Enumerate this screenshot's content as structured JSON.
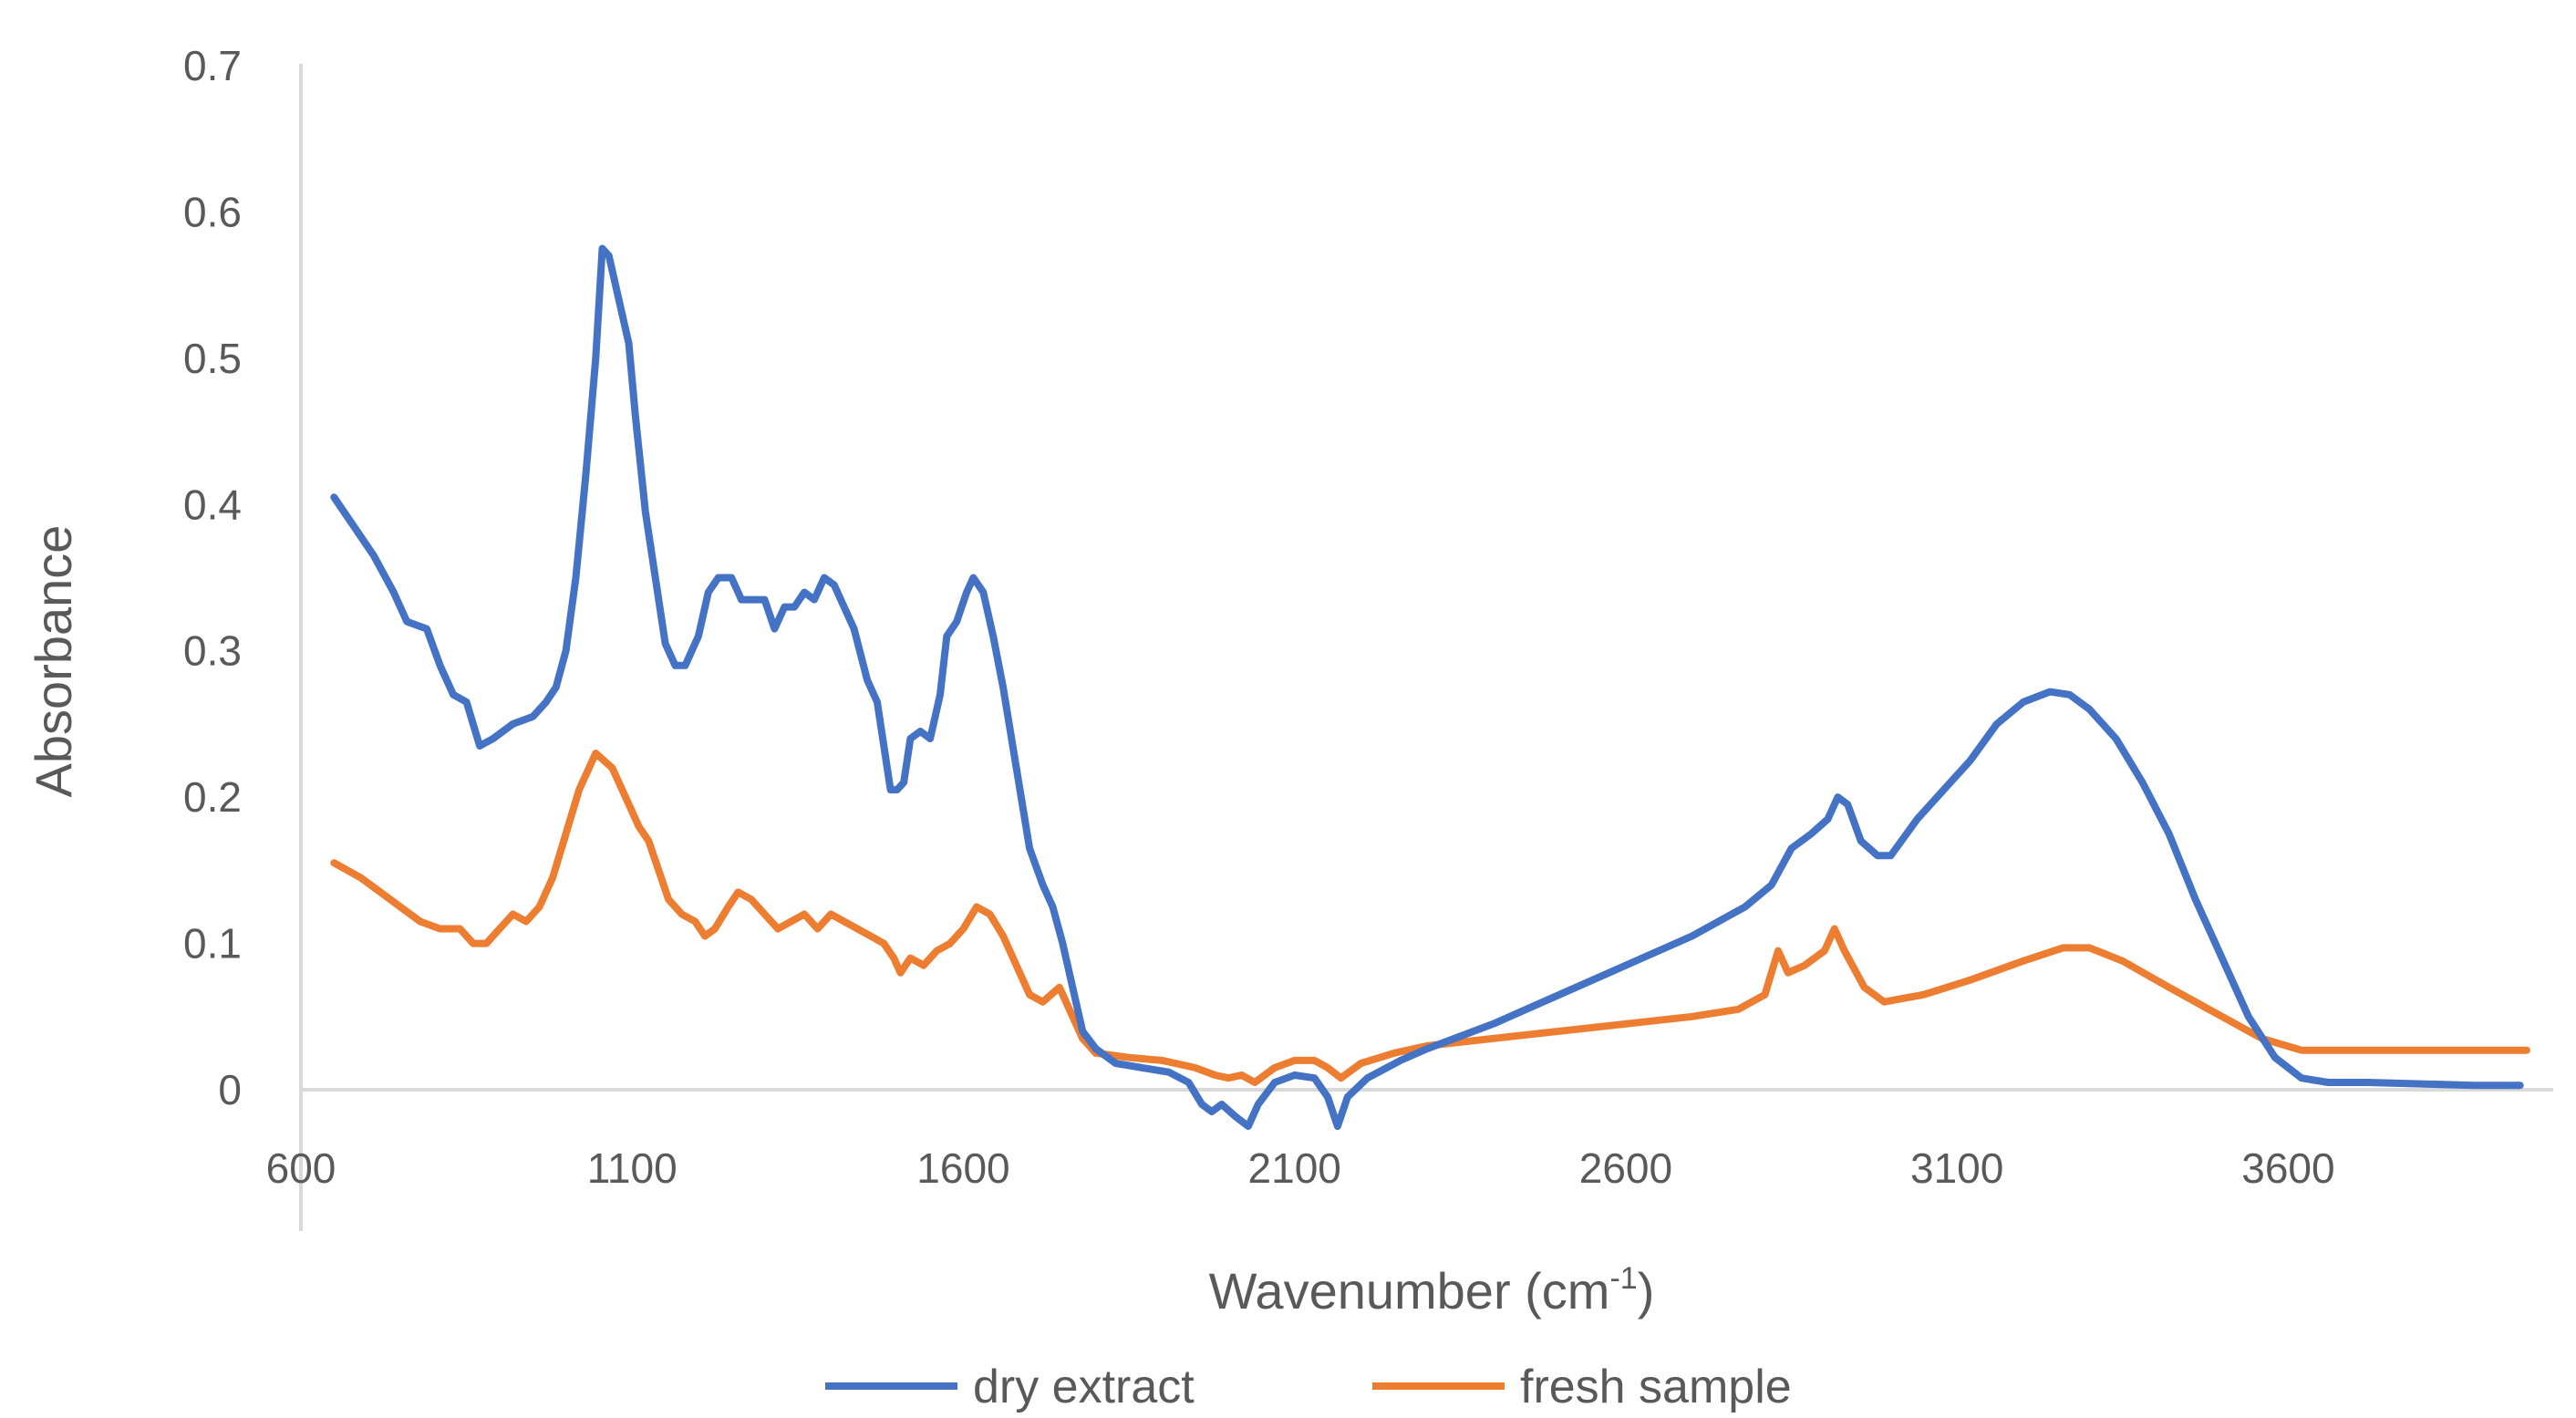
{
  "chart_data": {
    "type": "line",
    "title": "",
    "xlabel": "Wavenumber (cm",
    "xlabel_superscript": "-1",
    "xlabel_close": ")",
    "ylabel": "Absorbance",
    "xlim": [
      600,
      4000
    ],
    "ylim": [
      0,
      0.7
    ],
    "x_ticks": [
      600,
      1100,
      1600,
      2100,
      2600,
      3100,
      3600
    ],
    "y_ticks": [
      0,
      0.1,
      0.2,
      0.3,
      0.4,
      0.5,
      0.6,
      0.7
    ],
    "y_tick_labels": [
      "0",
      "0.1",
      "0.2",
      "0.3",
      "0.4",
      "0.5",
      "0.6",
      "0.7"
    ],
    "legend_position": "bottom",
    "grid": false,
    "series": [
      {
        "name": "dry extract",
        "color": "#4472c4",
        "points": [
          [
            650,
            0.405
          ],
          [
            680,
            0.385
          ],
          [
            710,
            0.365
          ],
          [
            740,
            0.34
          ],
          [
            760,
            0.32
          ],
          [
            790,
            0.315
          ],
          [
            810,
            0.29
          ],
          [
            830,
            0.27
          ],
          [
            850,
            0.265
          ],
          [
            870,
            0.235
          ],
          [
            890,
            0.24
          ],
          [
            920,
            0.25
          ],
          [
            950,
            0.255
          ],
          [
            970,
            0.265
          ],
          [
            985,
            0.275
          ],
          [
            1000,
            0.3
          ],
          [
            1015,
            0.35
          ],
          [
            1030,
            0.42
          ],
          [
            1045,
            0.5
          ],
          [
            1055,
            0.575
          ],
          [
            1065,
            0.57
          ],
          [
            1080,
            0.54
          ],
          [
            1095,
            0.51
          ],
          [
            1105,
            0.46
          ],
          [
            1120,
            0.395
          ],
          [
            1135,
            0.35
          ],
          [
            1150,
            0.305
          ],
          [
            1165,
            0.29
          ],
          [
            1180,
            0.29
          ],
          [
            1200,
            0.31
          ],
          [
            1215,
            0.34
          ],
          [
            1230,
            0.35
          ],
          [
            1250,
            0.35
          ],
          [
            1265,
            0.335
          ],
          [
            1285,
            0.335
          ],
          [
            1300,
            0.335
          ],
          [
            1315,
            0.315
          ],
          [
            1330,
            0.33
          ],
          [
            1345,
            0.33
          ],
          [
            1360,
            0.34
          ],
          [
            1375,
            0.335
          ],
          [
            1390,
            0.35
          ],
          [
            1405,
            0.345
          ],
          [
            1420,
            0.33
          ],
          [
            1435,
            0.315
          ],
          [
            1455,
            0.28
          ],
          [
            1470,
            0.265
          ],
          [
            1480,
            0.235
          ],
          [
            1490,
            0.205
          ],
          [
            1500,
            0.205
          ],
          [
            1510,
            0.21
          ],
          [
            1520,
            0.24
          ],
          [
            1535,
            0.245
          ],
          [
            1550,
            0.24
          ],
          [
            1565,
            0.27
          ],
          [
            1575,
            0.31
          ],
          [
            1590,
            0.32
          ],
          [
            1605,
            0.34
          ],
          [
            1615,
            0.35
          ],
          [
            1630,
            0.34
          ],
          [
            1645,
            0.31
          ],
          [
            1660,
            0.275
          ],
          [
            1680,
            0.22
          ],
          [
            1700,
            0.165
          ],
          [
            1720,
            0.14
          ],
          [
            1735,
            0.125
          ],
          [
            1750,
            0.1
          ],
          [
            1765,
            0.07
          ],
          [
            1780,
            0.04
          ],
          [
            1800,
            0.028
          ],
          [
            1830,
            0.018
          ],
          [
            1870,
            0.015
          ],
          [
            1910,
            0.012
          ],
          [
            1940,
            0.005
          ],
          [
            1960,
            -0.01
          ],
          [
            1975,
            -0.015
          ],
          [
            1990,
            -0.01
          ],
          [
            2010,
            -0.018
          ],
          [
            2030,
            -0.025
          ],
          [
            2045,
            -0.01
          ],
          [
            2070,
            0.005
          ],
          [
            2100,
            0.01
          ],
          [
            2130,
            0.008
          ],
          [
            2150,
            -0.005
          ],
          [
            2165,
            -0.025
          ],
          [
            2180,
            -0.005
          ],
          [
            2210,
            0.008
          ],
          [
            2260,
            0.02
          ],
          [
            2300,
            0.028
          ],
          [
            2400,
            0.045
          ],
          [
            2500,
            0.065
          ],
          [
            2600,
            0.085
          ],
          [
            2700,
            0.105
          ],
          [
            2780,
            0.125
          ],
          [
            2820,
            0.14
          ],
          [
            2850,
            0.165
          ],
          [
            2880,
            0.175
          ],
          [
            2905,
            0.185
          ],
          [
            2920,
            0.2
          ],
          [
            2935,
            0.195
          ],
          [
            2955,
            0.17
          ],
          [
            2980,
            0.16
          ],
          [
            3000,
            0.16
          ],
          [
            3040,
            0.185
          ],
          [
            3080,
            0.205
          ],
          [
            3120,
            0.225
          ],
          [
            3160,
            0.25
          ],
          [
            3200,
            0.265
          ],
          [
            3240,
            0.272
          ],
          [
            3270,
            0.27
          ],
          [
            3300,
            0.26
          ],
          [
            3340,
            0.24
          ],
          [
            3380,
            0.21
          ],
          [
            3420,
            0.175
          ],
          [
            3460,
            0.13
          ],
          [
            3500,
            0.09
          ],
          [
            3540,
            0.05
          ],
          [
            3580,
            0.022
          ],
          [
            3620,
            0.008
          ],
          [
            3660,
            0.005
          ],
          [
            3720,
            0.005
          ],
          [
            3800,
            0.004
          ],
          [
            3880,
            0.003
          ],
          [
            3950,
            0.003
          ]
        ]
      },
      {
        "name": "fresh sample",
        "color": "#ed7d31",
        "points": [
          [
            650,
            0.155
          ],
          [
            690,
            0.145
          ],
          [
            720,
            0.135
          ],
          [
            750,
            0.125
          ],
          [
            780,
            0.115
          ],
          [
            810,
            0.11
          ],
          [
            840,
            0.11
          ],
          [
            860,
            0.1
          ],
          [
            880,
            0.1
          ],
          [
            900,
            0.11
          ],
          [
            920,
            0.12
          ],
          [
            940,
            0.115
          ],
          [
            960,
            0.125
          ],
          [
            980,
            0.145
          ],
          [
            1000,
            0.175
          ],
          [
            1020,
            0.205
          ],
          [
            1045,
            0.23
          ],
          [
            1070,
            0.22
          ],
          [
            1090,
            0.2
          ],
          [
            1110,
            0.18
          ],
          [
            1125,
            0.17
          ],
          [
            1140,
            0.15
          ],
          [
            1155,
            0.13
          ],
          [
            1175,
            0.12
          ],
          [
            1195,
            0.115
          ],
          [
            1210,
            0.105
          ],
          [
            1225,
            0.11
          ],
          [
            1245,
            0.125
          ],
          [
            1260,
            0.135
          ],
          [
            1280,
            0.13
          ],
          [
            1300,
            0.12
          ],
          [
            1320,
            0.11
          ],
          [
            1340,
            0.115
          ],
          [
            1360,
            0.12
          ],
          [
            1380,
            0.11
          ],
          [
            1400,
            0.12
          ],
          [
            1420,
            0.115
          ],
          [
            1440,
            0.11
          ],
          [
            1460,
            0.105
          ],
          [
            1480,
            0.1
          ],
          [
            1495,
            0.09
          ],
          [
            1505,
            0.08
          ],
          [
            1520,
            0.09
          ],
          [
            1540,
            0.085
          ],
          [
            1560,
            0.095
          ],
          [
            1580,
            0.1
          ],
          [
            1600,
            0.11
          ],
          [
            1620,
            0.125
          ],
          [
            1640,
            0.12
          ],
          [
            1660,
            0.105
          ],
          [
            1680,
            0.085
          ],
          [
            1700,
            0.065
          ],
          [
            1720,
            0.06
          ],
          [
            1745,
            0.07
          ],
          [
            1760,
            0.055
          ],
          [
            1780,
            0.035
          ],
          [
            1800,
            0.025
          ],
          [
            1850,
            0.022
          ],
          [
            1900,
            0.02
          ],
          [
            1950,
            0.015
          ],
          [
            1980,
            0.01
          ],
          [
            2000,
            0.008
          ],
          [
            2020,
            0.01
          ],
          [
            2040,
            0.005
          ],
          [
            2070,
            0.015
          ],
          [
            2100,
            0.02
          ],
          [
            2130,
            0.02
          ],
          [
            2150,
            0.015
          ],
          [
            2170,
            0.008
          ],
          [
            2200,
            0.018
          ],
          [
            2250,
            0.025
          ],
          [
            2300,
            0.03
          ],
          [
            2400,
            0.035
          ],
          [
            2500,
            0.04
          ],
          [
            2600,
            0.045
          ],
          [
            2700,
            0.05
          ],
          [
            2770,
            0.055
          ],
          [
            2810,
            0.065
          ],
          [
            2830,
            0.095
          ],
          [
            2845,
            0.08
          ],
          [
            2870,
            0.085
          ],
          [
            2900,
            0.095
          ],
          [
            2915,
            0.11
          ],
          [
            2930,
            0.095
          ],
          [
            2960,
            0.07
          ],
          [
            2990,
            0.06
          ],
          [
            3050,
            0.065
          ],
          [
            3120,
            0.075
          ],
          [
            3200,
            0.088
          ],
          [
            3260,
            0.097
          ],
          [
            3300,
            0.097
          ],
          [
            3350,
            0.088
          ],
          [
            3420,
            0.07
          ],
          [
            3500,
            0.05
          ],
          [
            3560,
            0.035
          ],
          [
            3620,
            0.027
          ],
          [
            3700,
            0.027
          ],
          [
            3800,
            0.027
          ],
          [
            3900,
            0.027
          ],
          [
            3960,
            0.027
          ]
        ]
      }
    ]
  }
}
